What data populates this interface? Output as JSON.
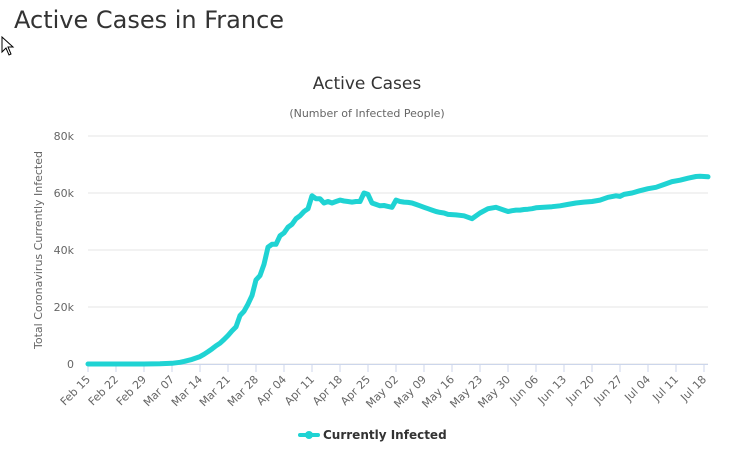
{
  "page": {
    "title": "Active Cases in France"
  },
  "icons": {
    "cursor": "arrow-cursor-icon"
  },
  "chart_data": {
    "type": "line",
    "title": "Active Cases",
    "subtitle": "(Number of Infected People)",
    "ylabel": "Total Coronavirus Currently Infected",
    "xlabel": "",
    "ylim": [
      0,
      80000
    ],
    "yticks": [
      0,
      20000,
      40000,
      60000,
      80000
    ],
    "ytick_labels": [
      "0",
      "20k",
      "40k",
      "60k",
      "80k"
    ],
    "xticks": [
      0,
      7,
      14,
      21,
      28,
      35,
      42,
      49,
      56,
      63,
      70,
      77,
      84,
      91,
      98,
      105,
      112,
      119,
      126,
      133,
      140,
      147,
      154
    ],
    "xtick_labels": [
      "Feb 15",
      "Feb 22",
      "Feb 29",
      "Mar 07",
      "Mar 14",
      "Mar 21",
      "Mar 28",
      "Apr 04",
      "Apr 11",
      "Apr 18",
      "Apr 25",
      "May 02",
      "May 09",
      "May 16",
      "May 23",
      "May 30",
      "Jun 06",
      "Jun 13",
      "Jun 20",
      "Jun 27",
      "Jul 04",
      "Jul 11",
      "Jul 18"
    ],
    "xlim": [
      0,
      155
    ],
    "grid": true,
    "legend": "bottom-center",
    "color": "#1fd3d3",
    "series": [
      {
        "name": "Currently Infected",
        "x": [
          0,
          7,
          14,
          18,
          21,
          23,
          24,
          26,
          28,
          29,
          30,
          31,
          32,
          33,
          34,
          35,
          36,
          37,
          38,
          39,
          40,
          41,
          42,
          43,
          44,
          45,
          46,
          47,
          48,
          49,
          50,
          51,
          52,
          53,
          54,
          55,
          56,
          57,
          58,
          59,
          60,
          61,
          62,
          63,
          64,
          65,
          66,
          67,
          68,
          69,
          70,
          71,
          72,
          73,
          74,
          75,
          76,
          77,
          78,
          79,
          80,
          81,
          82,
          83,
          84,
          85,
          86,
          87,
          88,
          89,
          90,
          92,
          94,
          96,
          98,
          100,
          102,
          104,
          105,
          106,
          107,
          108,
          109,
          110,
          111,
          112,
          114,
          116,
          118,
          120,
          122,
          124,
          126,
          128,
          130,
          132,
          133,
          134,
          136,
          138,
          140,
          142,
          144,
          146,
          148,
          150,
          152,
          153,
          155
        ],
        "values": [
          12,
          12,
          12,
          60,
          250,
          600,
          900,
          1600,
          2600,
          3400,
          4300,
          5300,
          6400,
          7300,
          8600,
          10000,
          11600,
          13000,
          17000,
          18500,
          21000,
          24000,
          29500,
          31000,
          35000,
          41000,
          42000,
          42000,
          45000,
          46000,
          48000,
          49000,
          51000,
          52000,
          53500,
          54500,
          59000,
          58000,
          58000,
          56500,
          57000,
          56500,
          57000,
          57500,
          57200,
          57000,
          56800,
          57000,
          57000,
          60000,
          59500,
          56500,
          56000,
          55500,
          55600,
          55300,
          55000,
          57500,
          57000,
          56800,
          56700,
          56500,
          56000,
          55500,
          55000,
          54500,
          54000,
          53500,
          53200,
          53000,
          52500,
          52300,
          52000,
          51000,
          53000,
          54500,
          55000,
          54000,
          53500,
          53800,
          54000,
          54000,
          54200,
          54300,
          54500,
          54800,
          55000,
          55200,
          55500,
          56000,
          56500,
          56800,
          57000,
          57500,
          58500,
          59000,
          58800,
          59500,
          60000,
          60800,
          61500,
          62000,
          63000,
          64000,
          64500,
          65200,
          65800,
          65900,
          65700
        ]
      }
    ]
  }
}
